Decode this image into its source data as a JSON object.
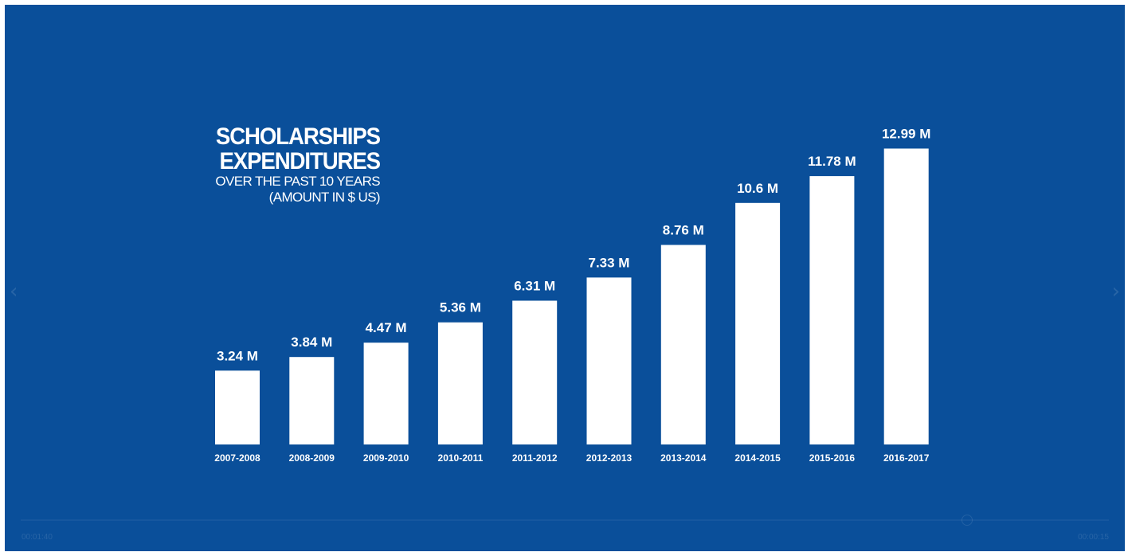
{
  "colors": {
    "background": "#0a4f9a",
    "bar": "#ffffff",
    "text": "#ffffff"
  },
  "player": {
    "time_elapsed": "00:01:40",
    "time_remaining": "00:00:15",
    "progress": 0.87
  },
  "chart_data": {
    "type": "bar",
    "title": "SCHOLARSHIPS EXPENDITURES",
    "title_lines": [
      "SCHOLARSHIPS",
      "EXPENDITURES"
    ],
    "subtitle_lines": [
      "OVER THE PAST 10 YEARS",
      "(AMOUNT IN $ US)"
    ],
    "categories": [
      "2007-2008",
      "2008-2009",
      "2009-2010",
      "2010-2011",
      "2011-2012",
      "2012-2013",
      "2013-2014",
      "2014-2015",
      "2015-2016",
      "2016-2017"
    ],
    "values": [
      3.24,
      3.84,
      4.47,
      5.36,
      6.31,
      7.33,
      8.76,
      10.6,
      11.78,
      12.99
    ],
    "value_labels": [
      "3.24 M",
      "3.84 M",
      "4.47 M",
      "5.36 M",
      "6.31 M",
      "7.33 M",
      "8.76 M",
      "10.6 M",
      "11.78 M",
      "12.99 M"
    ],
    "unit": "M",
    "grid": false,
    "legend": "none"
  }
}
